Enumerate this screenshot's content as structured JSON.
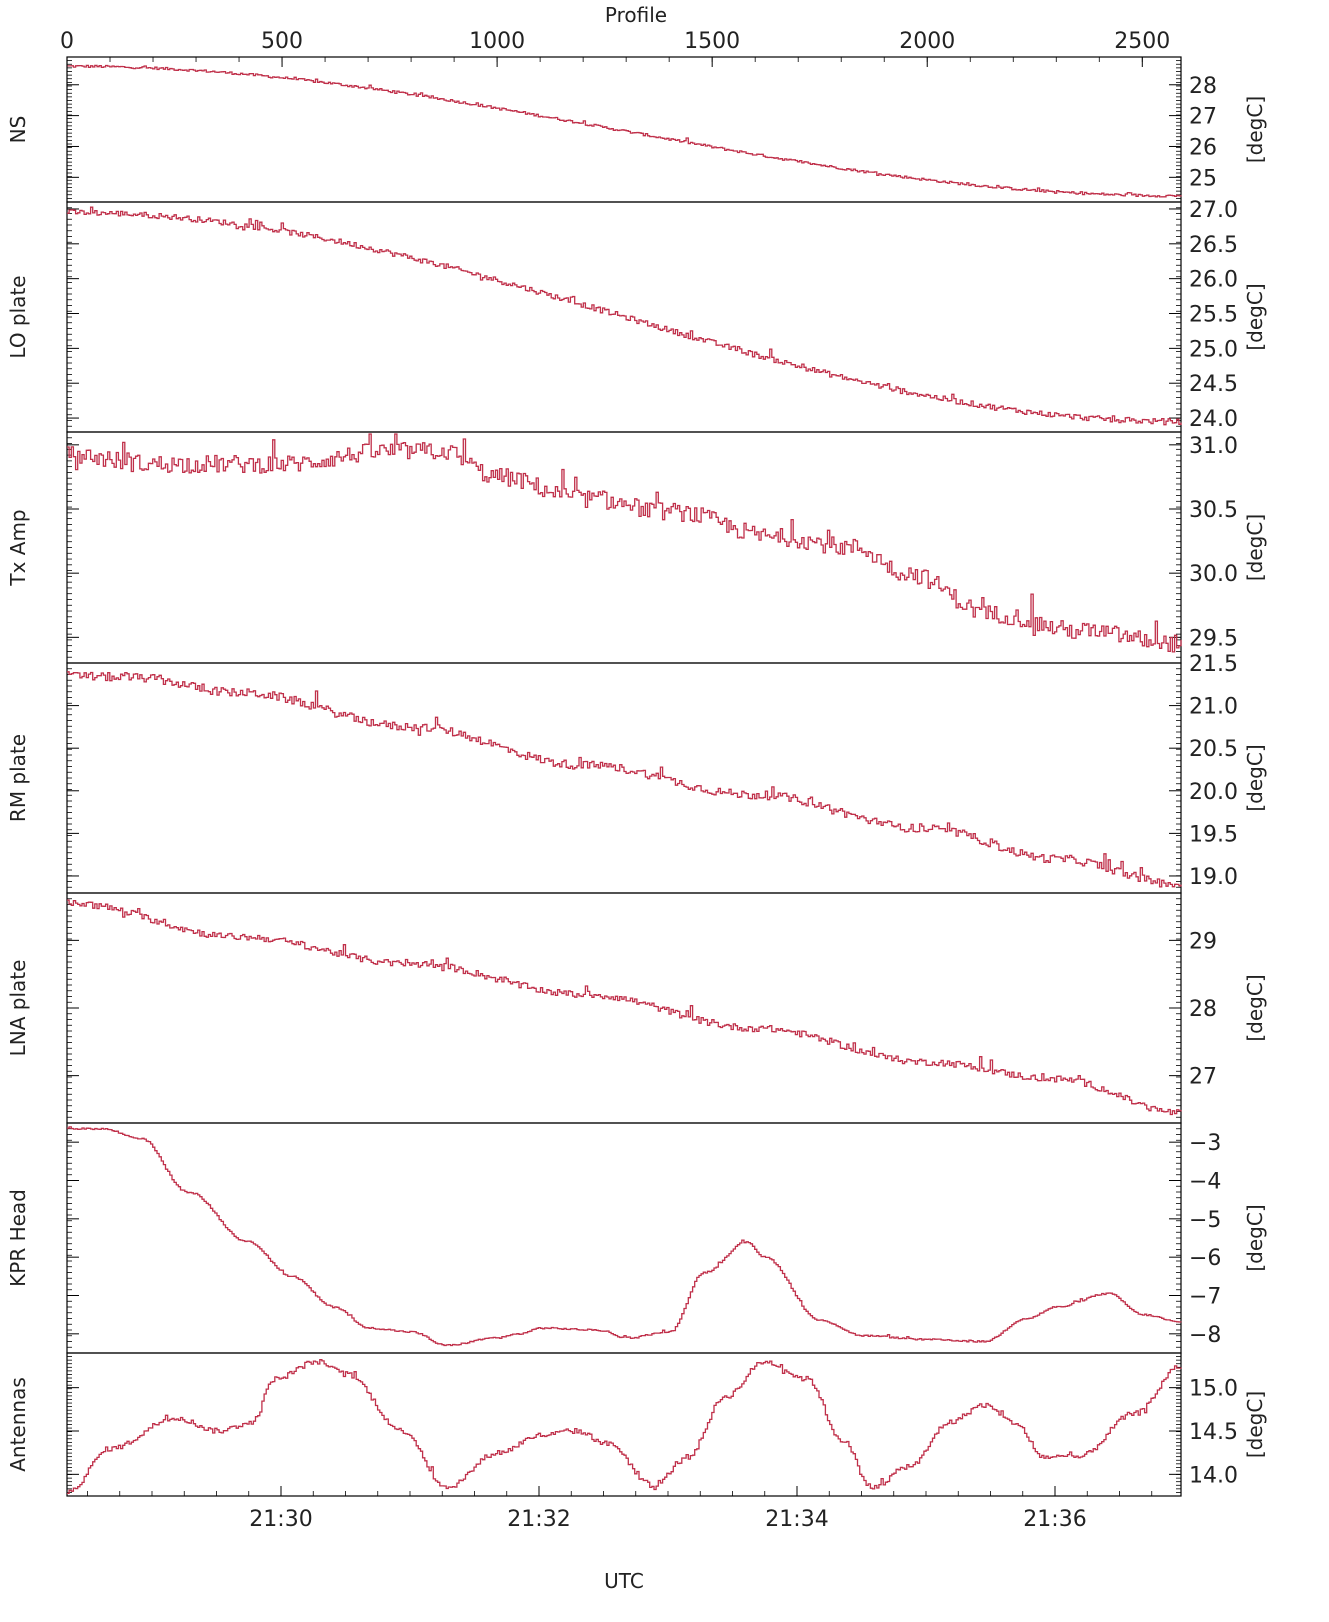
{
  "chart_data": {
    "type": "line",
    "top_axis": {
      "label": "Profile",
      "ticks": [
        "0",
        "500",
        "1000",
        "1500",
        "2000",
        "2500"
      ],
      "range": [
        0,
        2590
      ]
    },
    "bottom_axis": {
      "label": "UTC",
      "ticks": [
        "21:30",
        "21:32",
        "21:34",
        "21:36"
      ]
    },
    "line_color": "#c0304a",
    "grid": false,
    "panels": [
      {
        "name": "NS",
        "unit": "[degC]",
        "ylim": [
          24.2,
          28.9
        ],
        "ticks": [
          25,
          26,
          27,
          28
        ],
        "tick_labels": [
          "25",
          "26",
          "27",
          "28"
        ],
        "noise": 0.04,
        "key_points": [
          [
            0,
            28.6
          ],
          [
            2590,
            24.4
          ]
        ]
      },
      {
        "name": "LO plate",
        "unit": "[degC]",
        "ylim": [
          23.8,
          27.1
        ],
        "ticks": [
          24.0,
          24.5,
          25.0,
          25.5,
          26.0,
          26.5,
          27.0
        ],
        "tick_labels": [
          "24.0",
          "24.5",
          "25.0",
          "25.5",
          "26.0",
          "26.5",
          "27.0"
        ],
        "noise": 0.04,
        "key_points": [
          [
            0,
            26.95
          ],
          [
            2590,
            23.95
          ]
        ]
      },
      {
        "name": "Tx Amp",
        "unit": "[degC]",
        "ylim": [
          29.3,
          31.1
        ],
        "ticks": [
          29.5,
          30.0,
          30.5,
          31.0
        ],
        "tick_labels": [
          "29.5",
          "30.0",
          "30.5",
          "31.0"
        ],
        "noise": 0.07,
        "key_points": [
          [
            0,
            30.92
          ],
          [
            200,
            30.85
          ],
          [
            500,
            30.85
          ],
          [
            750,
            30.95
          ],
          [
            870,
            30.95
          ],
          [
            1000,
            30.75
          ],
          [
            1200,
            30.58
          ],
          [
            1400,
            30.48
          ],
          [
            1650,
            30.28
          ],
          [
            1830,
            30.2
          ],
          [
            1950,
            30.0
          ],
          [
            2150,
            29.68
          ],
          [
            2350,
            29.55
          ],
          [
            2590,
            29.45
          ]
        ]
      },
      {
        "name": "RM plate",
        "unit": "[degC]",
        "ylim": [
          18.8,
          21.5
        ],
        "ticks": [
          19.0,
          19.5,
          20.0,
          20.5,
          21.0,
          21.5
        ],
        "tick_labels": [
          "19.0",
          "19.5",
          "20.0",
          "20.5",
          "21.0",
          "21.5"
        ],
        "noise": 0.05,
        "key_points": [
          [
            0,
            21.35
          ],
          [
            150,
            21.33
          ],
          [
            400,
            21.15
          ],
          [
            800,
            20.75
          ],
          [
            1200,
            20.3
          ],
          [
            1600,
            19.95
          ],
          [
            2000,
            19.55
          ],
          [
            2300,
            19.2
          ],
          [
            2590,
            18.9
          ]
        ]
      },
      {
        "name": "LNA plate",
        "unit": "[degC]",
        "ylim": [
          26.3,
          29.7
        ],
        "ticks": [
          27,
          28,
          29
        ],
        "tick_labels": [
          "27",
          "28",
          "29"
        ],
        "noise": 0.05,
        "key_points": [
          [
            0,
            29.55
          ],
          [
            400,
            29.05
          ],
          [
            800,
            28.65
          ],
          [
            1200,
            28.2
          ],
          [
            1600,
            27.7
          ],
          [
            2000,
            27.2
          ],
          [
            2300,
            26.95
          ],
          [
            2590,
            26.45
          ]
        ]
      },
      {
        "name": "KPR Head",
        "unit": "[degC]",
        "ylim": [
          -8.5,
          -2.5
        ],
        "ticks": [
          -8,
          -7,
          -6,
          -5,
          -4,
          -3
        ],
        "tick_labels": [
          "−8",
          "−7",
          "−6",
          "−5",
          "−4",
          "−3"
        ],
        "noise": 0.02,
        "key_points": [
          [
            0,
            -2.65
          ],
          [
            80,
            -2.65
          ],
          [
            170,
            -2.9
          ],
          [
            280,
            -4.3
          ],
          [
            420,
            -5.6
          ],
          [
            520,
            -6.5
          ],
          [
            620,
            -7.3
          ],
          [
            700,
            -7.85
          ],
          [
            800,
            -7.95
          ],
          [
            880,
            -8.3
          ],
          [
            1000,
            -8.1
          ],
          [
            1050,
            -8.0
          ],
          [
            1100,
            -7.85
          ],
          [
            1230,
            -7.9
          ],
          [
            1300,
            -8.1
          ],
          [
            1400,
            -7.95
          ],
          [
            1480,
            -6.4
          ],
          [
            1580,
            -5.6
          ],
          [
            1620,
            -6.0
          ],
          [
            1750,
            -7.65
          ],
          [
            1850,
            -8.05
          ],
          [
            2000,
            -8.15
          ],
          [
            2130,
            -8.2
          ],
          [
            2230,
            -7.6
          ],
          [
            2300,
            -7.3
          ],
          [
            2420,
            -6.95
          ],
          [
            2500,
            -7.5
          ],
          [
            2590,
            -7.7
          ]
        ]
      },
      {
        "name": "Antennas",
        "unit": "[degC]",
        "ylim": [
          13.75,
          15.4
        ],
        "ticks": [
          14.0,
          14.5,
          15.0
        ],
        "tick_labels": [
          "14.0",
          "14.5",
          "15.0"
        ],
        "noise": 0.03,
        "key_points": [
          [
            0,
            13.8
          ],
          [
            100,
            14.3
          ],
          [
            250,
            14.65
          ],
          [
            350,
            14.5
          ],
          [
            430,
            14.6
          ],
          [
            480,
            15.1
          ],
          [
            580,
            15.3
          ],
          [
            650,
            15.15
          ],
          [
            780,
            14.5
          ],
          [
            880,
            13.85
          ],
          [
            1000,
            14.25
          ],
          [
            1100,
            14.45
          ],
          [
            1180,
            14.5
          ],
          [
            1260,
            14.35
          ],
          [
            1360,
            13.85
          ],
          [
            1440,
            14.2
          ],
          [
            1530,
            14.9
          ],
          [
            1620,
            15.3
          ],
          [
            1720,
            15.1
          ],
          [
            1800,
            14.4
          ],
          [
            1870,
            13.85
          ],
          [
            1960,
            14.1
          ],
          [
            2050,
            14.6
          ],
          [
            2130,
            14.8
          ],
          [
            2200,
            14.6
          ],
          [
            2270,
            14.2
          ],
          [
            2350,
            14.2
          ],
          [
            2480,
            14.7
          ],
          [
            2590,
            15.25
          ]
        ]
      }
    ]
  }
}
